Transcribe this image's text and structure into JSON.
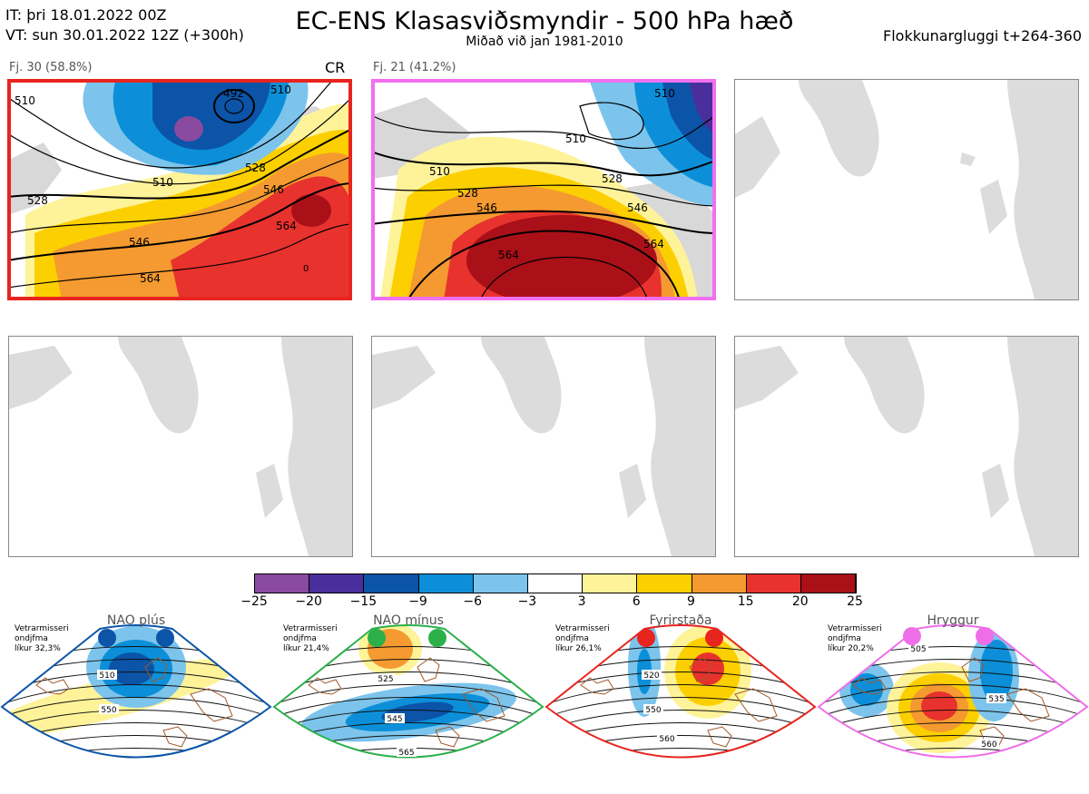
{
  "header": {
    "it_line": "IT: þri 18.01.2022 00Z",
    "vt_line": "VT: sun 30.01.2022 12Z  (+300h)",
    "title": "EC-ENS Klasasviðsmyndir - 500 hPa hæð",
    "subtitle": "Miðað við jan 1981-2010",
    "window": "Flokkunargluggi t+264-360"
  },
  "clusters": [
    {
      "label": "Fj. 30 (58.8%)",
      "regime": "CR",
      "border_color": "#e8241f",
      "contours": [
        "510",
        "492",
        "510",
        "510",
        "528",
        "546",
        "528",
        "546",
        "564",
        "564",
        "0"
      ]
    },
    {
      "label": "Fj. 21 (41.2%)",
      "regime": "",
      "border_color": "#f070f0",
      "contours": [
        "510",
        "510",
        "510",
        "528",
        "528",
        "546",
        "546",
        "564",
        "564"
      ]
    }
  ],
  "colorbar": {
    "ticks": [
      "−25",
      "−20",
      "−15",
      "−9",
      "−6",
      "−3",
      "3",
      "6",
      "9",
      "15",
      "20",
      "25"
    ],
    "colors": [
      "#8a4aa0",
      "#4a2f9c",
      "#0b54a8",
      "#0c8fd8",
      "#7cc4ec",
      "#ffffff",
      "#fff39a",
      "#fcd000",
      "#f59a30",
      "#e8322e",
      "#aa1018"
    ]
  },
  "regimes": [
    {
      "name": "NAO plús",
      "note": [
        "Vetrarmisseri",
        "ondjfma",
        "líkur 32,3%"
      ],
      "color": "#0b54a8",
      "labels": [
        "510",
        "550"
      ]
    },
    {
      "name": "NAO mínus",
      "note": [
        "Vetrarmisseri",
        "ondjfma",
        "líkur 21,4%"
      ],
      "color": "#2bb04a",
      "labels": [
        "525",
        "545",
        "565"
      ]
    },
    {
      "name": "Fyrirstaða",
      "note": [
        "Vetrarmisseri",
        "ondjfma",
        "líkur 26,1%"
      ],
      "color": "#e8241f",
      "labels": [
        "520",
        "550",
        "560"
      ]
    },
    {
      "name": "Hryggur",
      "note": [
        "Vetrarmisseri",
        "ondjfma",
        "líkur 20,2%"
      ],
      "color": "#ee6ee8",
      "labels": [
        "505",
        "535",
        "560"
      ]
    }
  ]
}
